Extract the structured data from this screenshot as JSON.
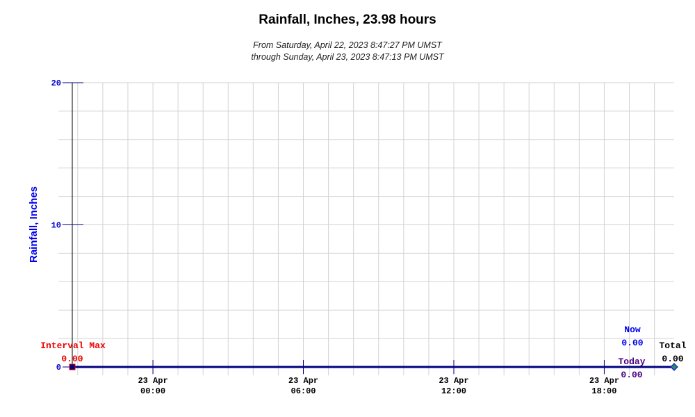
{
  "chart_data": {
    "type": "line",
    "title": "Rainfall, Inches, 23.98 hours",
    "subtitle_from": "From Saturday, April 22, 2023 8:47:27 PM UMST",
    "subtitle_through": "through Sunday, April 23, 2023 8:47:13 PM UMST",
    "ylabel": "Rainfall, Inches",
    "ylim": [
      0,
      20
    ],
    "yticks": [
      {
        "value": 0,
        "label": "0"
      },
      {
        "value": 10,
        "label": "10"
      },
      {
        "value": 20,
        "label": "20"
      }
    ],
    "xlim_hours": [
      -3.2167,
      20.7872
    ],
    "xticks": [
      {
        "hour": 0,
        "date": "23 Apr",
        "time": "00:00"
      },
      {
        "hour": 6,
        "date": "23 Apr",
        "time": "06:00"
      },
      {
        "hour": 12,
        "date": "23 Apr",
        "time": "12:00"
      },
      {
        "hour": 18,
        "date": "23 Apr",
        "time": "18:00"
      }
    ],
    "grid": true,
    "series": [
      {
        "x_hours": [
          -3.2167,
          20.7872
        ],
        "values": [
          0,
          0
        ],
        "color": "#000080"
      }
    ],
    "annotations": {
      "interval_max": {
        "label": "Interval Max",
        "value": "0.00",
        "color": "#ee0000",
        "x_hour": -3.2167,
        "y": 0
      },
      "now": {
        "label": "Now",
        "value": "0.00",
        "color": "#0000ee"
      },
      "today": {
        "label": "Today",
        "value": "0.00",
        "color": "#4b0082"
      },
      "total": {
        "label": "Total",
        "value": "0.00",
        "color": "#000000",
        "x_hour": 20.7872,
        "y": 0
      }
    }
  }
}
